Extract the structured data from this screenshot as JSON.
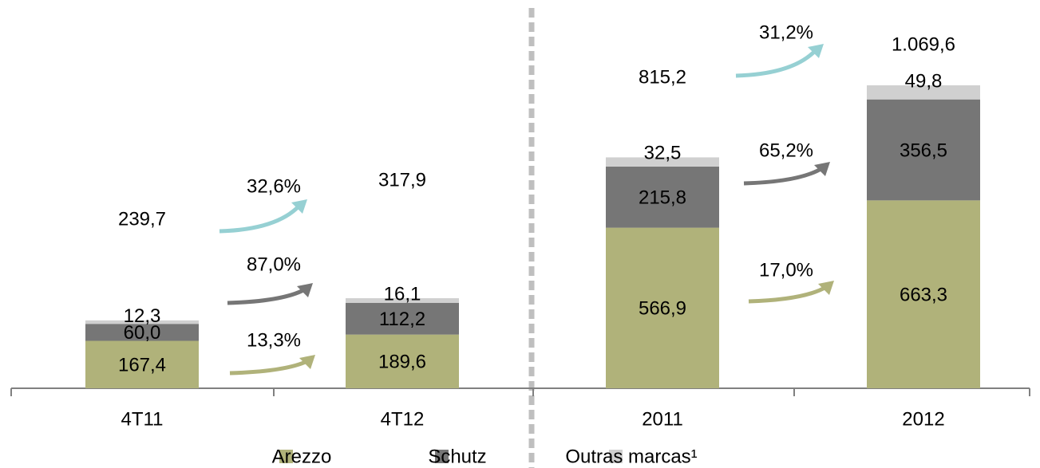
{
  "chart_data": {
    "type": "stacked_bar",
    "categories": [
      "4T11",
      "4T12",
      "2011",
      "2012"
    ],
    "series": [
      {
        "name": "Arezzo",
        "color": "#b0b27a",
        "values": [
          167.4,
          189.6,
          566.9,
          663.3
        ],
        "value_labels": [
          "167,4",
          "189,6",
          "566,9",
          "663,3"
        ]
      },
      {
        "name": "Schutz",
        "color": "#767676",
        "values": [
          60.0,
          112.2,
          215.8,
          356.5
        ],
        "value_labels": [
          "60,0",
          "112,2",
          "215,8",
          "356,5"
        ]
      },
      {
        "name": "Outras marcas¹",
        "color": "#d0d0d0",
        "values": [
          12.3,
          16.1,
          32.5,
          49.8
        ],
        "value_labels": [
          "12,3",
          "16,1",
          "32,5",
          "49,8"
        ]
      }
    ],
    "totals": [
      239.7,
      317.9,
      815.2,
      1069.6
    ],
    "total_labels": [
      "239,7",
      "317,9",
      "815,2",
      "1.069,6"
    ],
    "annotations": [
      "32,6%",
      "87,0%",
      "13,3%",
      "31,2%",
      "65,2%",
      "17,0%"
    ]
  }
}
